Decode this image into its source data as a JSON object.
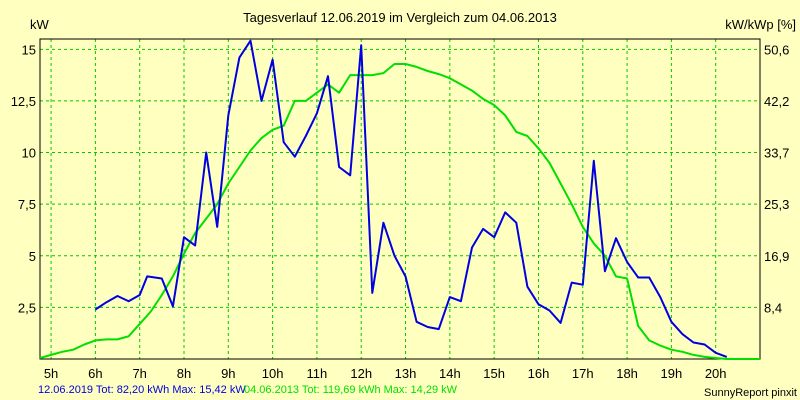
{
  "chart_data": {
    "type": "line",
    "title": "Tagesverlauf 12.06.2019 im Vergleich zum 04.06.2013",
    "ylabel_left": "kW",
    "ylabel_right": "kW/kWp [%]",
    "x_tick_labels": [
      "5h",
      "6h",
      "7h",
      "8h",
      "9h",
      "10h",
      "11h",
      "12h",
      "13h",
      "14h",
      "15h",
      "16h",
      "17h",
      "18h",
      "19h",
      "20h"
    ],
    "x_tick_values": [
      4.75,
      5.75,
      6.75,
      7.75,
      8.75,
      9.75,
      10.75,
      11.75,
      12.75,
      13.75,
      14.75,
      15.75,
      16.75,
      17.75,
      18.75,
      19.75
    ],
    "xlim": [
      4.5,
      20.75
    ],
    "y_ticks": [
      2.5,
      5,
      7.5,
      10,
      12.5,
      15
    ],
    "y_tick_labels": [
      "2,5",
      "5",
      "7,5",
      "10",
      "12,5",
      "15"
    ],
    "y2_tick_labels": [
      "8,4",
      "16,9",
      "25,3",
      "33,7",
      "42,2",
      "50,6"
    ],
    "ylim": [
      0,
      15.5
    ],
    "grid": true,
    "series": [
      {
        "name": "12.06.2019",
        "color": "#0000e0",
        "x": [
          5.75,
          6.0,
          6.25,
          6.5,
          6.75,
          6.92,
          7.25,
          7.5,
          7.75,
          8.0,
          8.25,
          8.5,
          8.75,
          9.0,
          9.25,
          9.5,
          9.75,
          10.0,
          10.25,
          10.5,
          10.75,
          11.0,
          11.25,
          11.5,
          11.75,
          12.0,
          12.25,
          12.5,
          12.75,
          13.0,
          13.25,
          13.5,
          13.75,
          14.0,
          14.25,
          14.5,
          14.75,
          15.0,
          15.25,
          15.5,
          15.75,
          16.0,
          16.25,
          16.5,
          16.75,
          17.0,
          17.25,
          17.5,
          17.75,
          18.0,
          18.25,
          18.5,
          18.75,
          19.0,
          19.25,
          19.5,
          19.75,
          20.0
        ],
        "y": [
          2.4,
          2.75,
          3.05,
          2.8,
          3.1,
          4.0,
          3.9,
          2.55,
          5.9,
          5.5,
          10.0,
          6.4,
          11.8,
          14.6,
          15.42,
          12.5,
          14.5,
          10.5,
          9.8,
          10.8,
          11.9,
          13.7,
          9.3,
          8.9,
          15.2,
          3.2,
          6.6,
          5.0,
          4.0,
          1.8,
          1.55,
          1.45,
          3.0,
          2.8,
          5.4,
          6.3,
          5.9,
          7.1,
          6.6,
          3.5,
          2.65,
          2.35,
          1.75,
          3.7,
          3.6,
          9.6,
          4.25,
          5.85,
          4.7,
          3.95,
          3.95,
          3.0,
          1.8,
          1.2,
          0.8,
          0.7,
          0.3,
          0.1
        ]
      },
      {
        "name": "04.06.2013",
        "color": "#00e000",
        "x": [
          4.5,
          4.75,
          5.0,
          5.25,
          5.5,
          5.75,
          6.0,
          6.25,
          6.5,
          6.75,
          7.0,
          7.25,
          7.5,
          7.75,
          8.0,
          8.25,
          8.5,
          8.75,
          9.0,
          9.25,
          9.5,
          9.75,
          10.0,
          10.25,
          10.5,
          10.75,
          11.0,
          11.25,
          11.5,
          11.75,
          12.0,
          12.25,
          12.5,
          12.75,
          13.0,
          13.25,
          13.5,
          13.75,
          14.0,
          14.25,
          14.5,
          14.75,
          15.0,
          15.25,
          15.5,
          15.75,
          16.0,
          16.25,
          16.5,
          16.75,
          17.0,
          17.25,
          17.5,
          17.75,
          18.0,
          18.25,
          18.5,
          18.75,
          19.0,
          19.25,
          19.5,
          19.75,
          20.0,
          20.25,
          20.5,
          20.75
        ],
        "y": [
          0.05,
          0.2,
          0.35,
          0.45,
          0.7,
          0.9,
          0.95,
          0.95,
          1.1,
          1.7,
          2.3,
          3.1,
          4.0,
          5.1,
          6.1,
          6.8,
          7.5,
          8.5,
          9.3,
          10.1,
          10.7,
          11.1,
          11.3,
          12.5,
          12.5,
          12.9,
          13.3,
          12.9,
          13.75,
          13.75,
          13.75,
          13.85,
          14.29,
          14.29,
          14.15,
          13.95,
          13.8,
          13.6,
          13.3,
          13.0,
          12.6,
          12.3,
          11.8,
          11.0,
          10.8,
          10.2,
          9.5,
          8.5,
          7.5,
          6.4,
          5.6,
          5.0,
          4.0,
          3.9,
          1.6,
          0.9,
          0.65,
          0.45,
          0.35,
          0.2,
          0.1,
          0.05,
          0.0,
          0.0,
          0.0,
          0.0
        ]
      }
    ],
    "legend": {
      "entry_2019": "12.06.2019 Tot: 82,20 kWh Max: 15,42 kW",
      "entry_2013": "04.06.2013 Tot: 119,69 kWh Max: 14,29 kW"
    },
    "credit": "SunnyReport pinxit"
  }
}
